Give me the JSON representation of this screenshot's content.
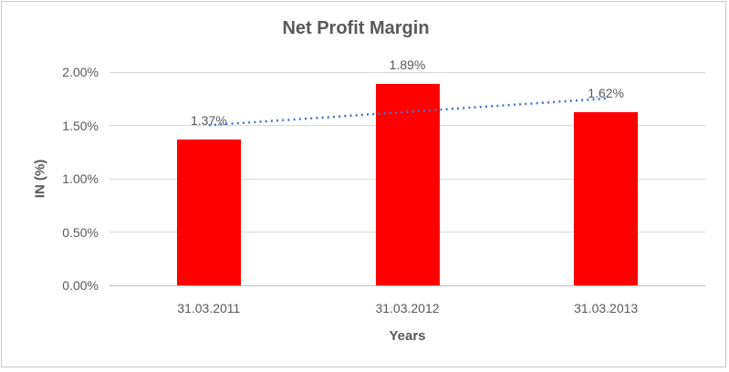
{
  "chart_data": {
    "type": "bar",
    "title": "Net Profit Margin",
    "xlabel": "Years",
    "ylabel": "IN (%)",
    "categories": [
      "31.03.2011",
      "31.03.2012",
      "31.03.2013"
    ],
    "values": [
      1.37,
      1.89,
      1.62
    ],
    "data_labels": [
      "1.37%",
      "1.89%",
      "1.62%"
    ],
    "y_ticks": [
      {
        "value": 0.0,
        "label": "0.00%"
      },
      {
        "value": 0.5,
        "label": "0.50%"
      },
      {
        "value": 1.0,
        "label": "1.00%"
      },
      {
        "value": 1.5,
        "label": "1.50%"
      },
      {
        "value": 2.0,
        "label": "2.00%"
      }
    ],
    "ylim": [
      0,
      2.0
    ],
    "grid": true,
    "legend": "none",
    "bar_color": "#ff0000",
    "trendline": {
      "type": "linear",
      "style": "dotted",
      "color": "#4472c4"
    },
    "text_color": "#595959",
    "gridline_color": "#d9d9d9",
    "axis_line_color": "#bfbfbf",
    "frame_border_color": "#c9c9c9"
  }
}
